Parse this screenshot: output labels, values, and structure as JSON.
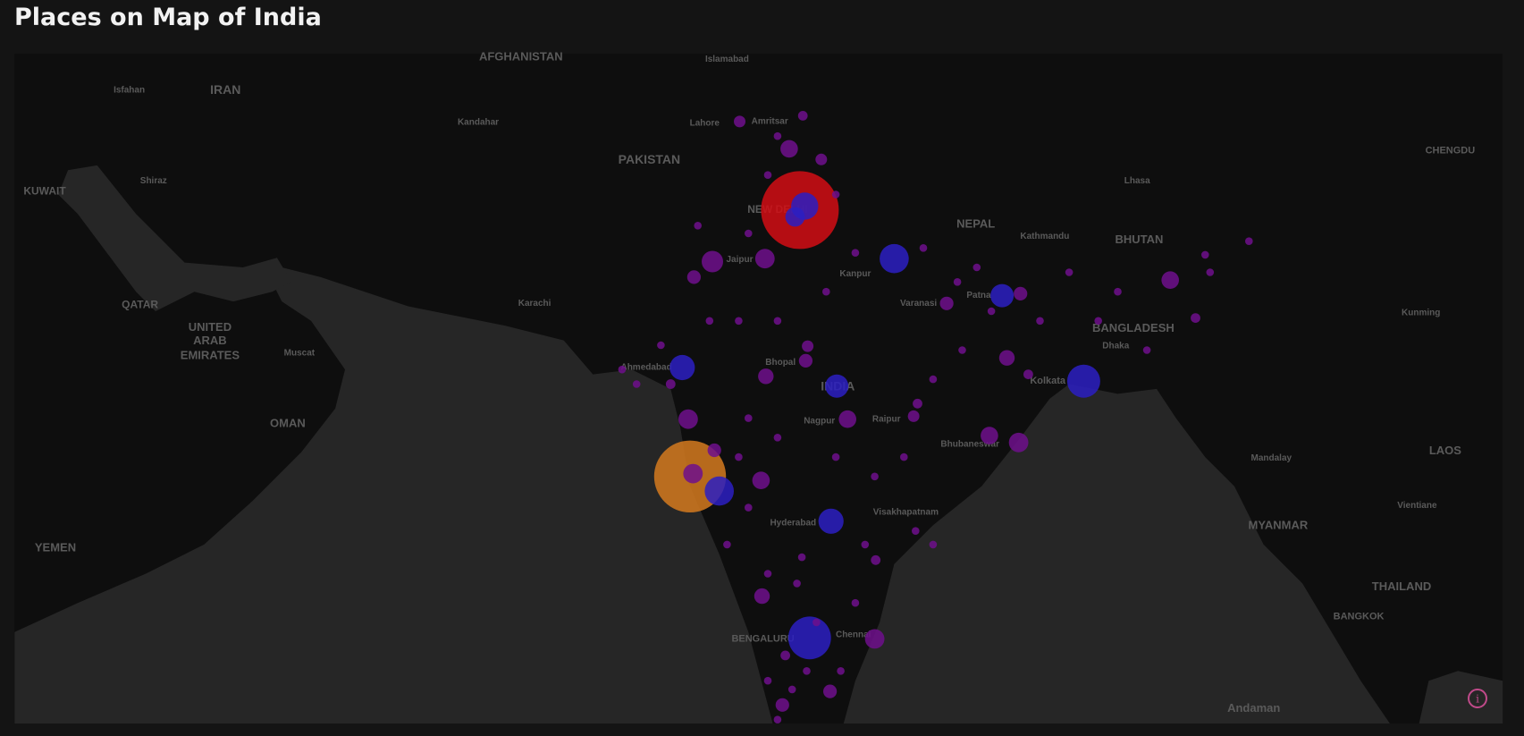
{
  "header": {
    "title": "Places on Map of India"
  },
  "map": {
    "labels": [
      "AFGHANISTAN",
      "Islamabad",
      "Isfahan",
      "IRAN",
      "Kandahar",
      "Lahore",
      "Amritsar",
      "PAKISTAN",
      "CHENGDU",
      "KUWAIT",
      "Shiraz",
      "NEW DELHI",
      "NEPAL",
      "Kathmandu",
      "BHUTAN",
      "Lhasa",
      "Jaipur",
      "Kanpur",
      "Patna",
      "Varanasi",
      "QATAR",
      "UNITED",
      "ARAB",
      "EMIRATES",
      "Muscat",
      "Karachi",
      "BANGLADESH",
      "Kunming",
      "Dhaka",
      "Ahmedabad",
      "Bhopal",
      "INDIA",
      "Kolkata",
      "OMAN",
      "Nagpur",
      "Raipur",
      "Bhubaneswar",
      "Mandalay",
      "LAOS",
      "YEMEN",
      "Hyderabad",
      "Visakhapatnam",
      "MYANMAR",
      "Vientiane",
      "THAILAND",
      "BANGKOK",
      "BENGALURU",
      "Chennai",
      "Andaman"
    ]
  }
}
